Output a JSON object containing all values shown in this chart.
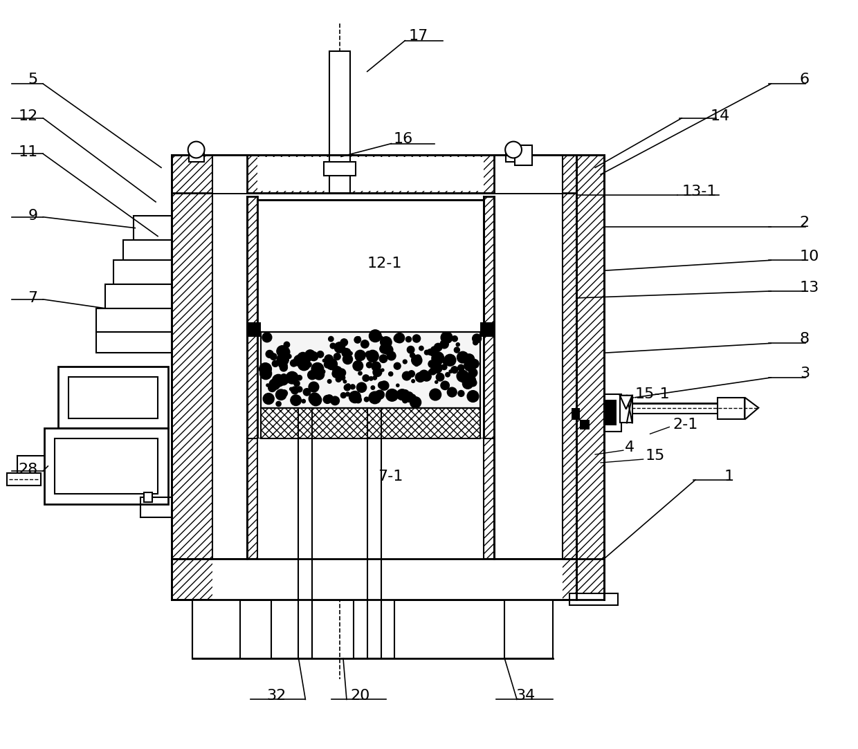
{
  "bg_color": "#ffffff",
  "lc": "#000000",
  "fig_width": 12.4,
  "fig_height": 10.83,
  "dpi": 100
}
